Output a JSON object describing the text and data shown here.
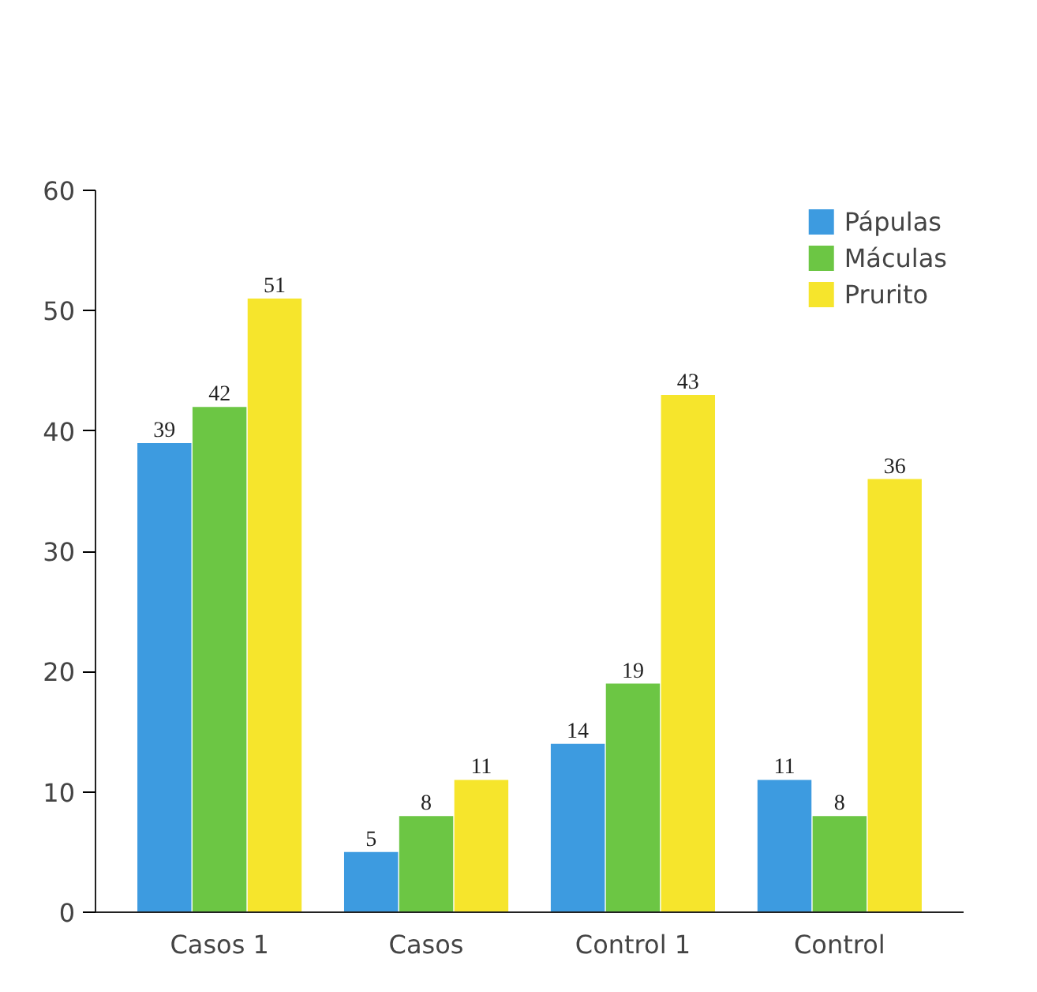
{
  "chart_data": {
    "type": "bar",
    "categories": [
      "Casos 1",
      "Casos",
      "Control 1",
      "Control"
    ],
    "series": [
      {
        "name": "Pápulas",
        "color": "#3d9be0",
        "values": [
          39,
          5,
          14,
          11
        ]
      },
      {
        "name": "Máculas",
        "color": "#6cc644",
        "values": [
          42,
          8,
          19,
          8
        ]
      },
      {
        "name": "Prurito",
        "color": "#f6e52c",
        "values": [
          51,
          11,
          43,
          36
        ]
      }
    ],
    "ylim": [
      0,
      60
    ],
    "yticks": [
      0,
      10,
      20,
      30,
      40,
      50,
      60
    ],
    "data_labels": true,
    "legend": "top right",
    "grid": false
  }
}
